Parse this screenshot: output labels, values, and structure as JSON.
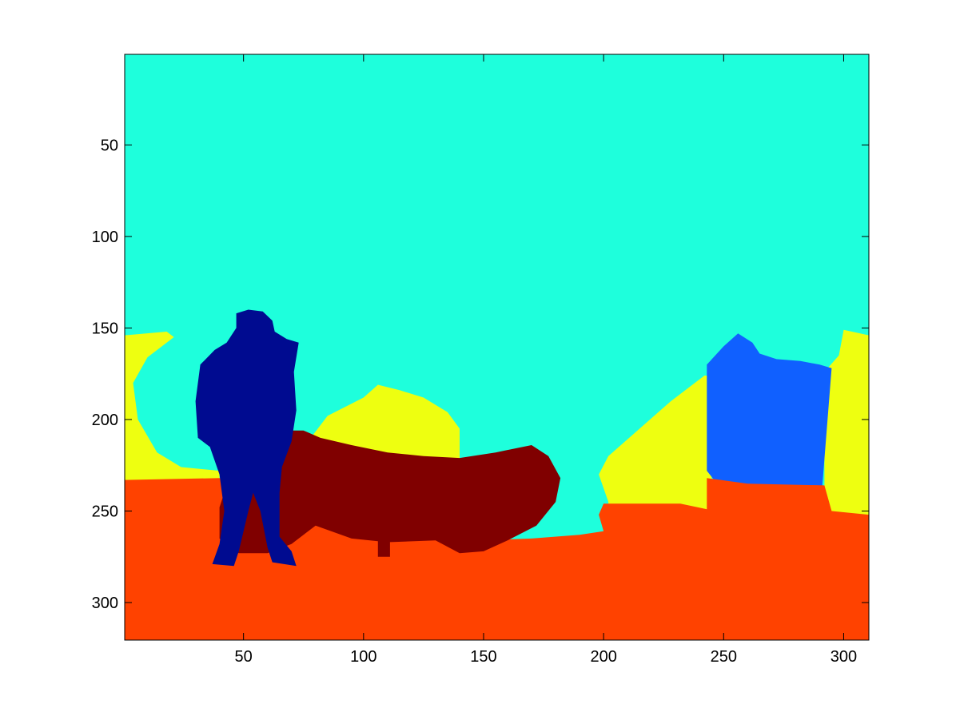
{
  "chart_data": {
    "type": "heatmap",
    "title": "",
    "xlabel": "",
    "ylabel": "",
    "xlim": [
      0.5,
      310.5
    ],
    "ylim": [
      320.5,
      0.5
    ],
    "y_axis_direction": "reversed",
    "grid": false,
    "colormap": "jet",
    "x_ticks": [
      50,
      100,
      150,
      200,
      250,
      300
    ],
    "y_ticks": [
      50,
      100,
      150,
      200,
      250,
      300
    ],
    "x_tick_labels": [
      "50",
      "100",
      "150",
      "200",
      "250",
      "300"
    ],
    "y_tick_labels": [
      "50",
      "100",
      "150",
      "200",
      "250",
      "300"
    ],
    "regions": [
      {
        "color": "#1effdc",
        "points": [
          [
            0.5,
            0.5
          ],
          [
            310.5,
            0.5
          ],
          [
            310.5,
            320.5
          ],
          [
            0.5,
            320.5
          ]
        ]
      },
      {
        "color": "#eeff10",
        "points": [
          [
            0.5,
            154
          ],
          [
            18,
            152
          ],
          [
            21,
            155
          ],
          [
            10,
            166
          ],
          [
            4,
            180
          ],
          [
            6,
            200
          ],
          [
            14,
            218
          ],
          [
            24,
            226
          ],
          [
            40,
            228
          ],
          [
            40,
            233
          ],
          [
            0.5,
            233
          ]
        ]
      },
      {
        "color": "#eeff10",
        "points": [
          [
            78,
            210
          ],
          [
            85,
            198
          ],
          [
            100,
            188
          ],
          [
            106,
            181
          ],
          [
            115,
            184
          ],
          [
            125,
            188
          ],
          [
            135,
            196
          ],
          [
            140,
            205
          ],
          [
            140,
            225
          ],
          [
            78,
            228
          ]
        ]
      },
      {
        "color": "#eeff10",
        "points": [
          [
            202,
            245
          ],
          [
            198,
            230
          ],
          [
            202,
            220
          ],
          [
            215,
            205
          ],
          [
            228,
            190
          ],
          [
            242,
            176
          ],
          [
            245,
            176
          ],
          [
            245,
            250
          ],
          [
            202,
            255
          ]
        ]
      },
      {
        "color": "#eeff10",
        "points": [
          [
            292,
            174
          ],
          [
            298,
            165
          ],
          [
            300,
            151
          ],
          [
            310.5,
            154
          ],
          [
            310.5,
            252
          ],
          [
            292,
            252
          ]
        ]
      },
      {
        "color": "#1060ff",
        "points": [
          [
            243,
            170
          ],
          [
            250,
            160
          ],
          [
            256,
            153
          ],
          [
            262,
            158
          ],
          [
            265,
            164
          ],
          [
            272,
            167
          ],
          [
            282,
            168
          ],
          [
            290,
            170
          ],
          [
            295,
            172
          ],
          [
            293,
            205
          ],
          [
            291,
            238
          ],
          [
            276,
            236
          ],
          [
            260,
            236
          ],
          [
            246,
            233
          ],
          [
            243,
            228
          ]
        ]
      },
      {
        "color": "#ff4200",
        "points": [
          [
            0.5,
            233
          ],
          [
            40,
            232
          ],
          [
            50,
            238
          ],
          [
            60,
            243
          ],
          [
            75,
            238
          ],
          [
            80,
            236
          ],
          [
            85,
            245
          ],
          [
            100,
            250
          ],
          [
            110,
            254
          ],
          [
            120,
            262
          ],
          [
            135,
            264
          ],
          [
            150,
            266
          ],
          [
            170,
            265
          ],
          [
            190,
            263
          ],
          [
            200,
            261
          ],
          [
            198,
            252
          ],
          [
            200,
            246
          ],
          [
            212,
            246
          ],
          [
            232,
            246
          ],
          [
            243,
            249
          ],
          [
            243,
            232
          ],
          [
            260,
            235
          ],
          [
            292,
            236
          ],
          [
            295,
            250
          ],
          [
            310.5,
            252
          ],
          [
            310.5,
            320.5
          ],
          [
            0.5,
            320.5
          ]
        ]
      },
      {
        "color": "#800000",
        "points": [
          [
            45,
            228
          ],
          [
            54,
            222
          ],
          [
            62,
            210
          ],
          [
            70,
            206
          ],
          [
            75,
            206
          ],
          [
            82,
            210
          ],
          [
            95,
            214
          ],
          [
            110,
            218
          ],
          [
            125,
            220
          ],
          [
            140,
            221
          ],
          [
            155,
            218
          ],
          [
            170,
            214
          ],
          [
            177,
            220
          ],
          [
            182,
            232
          ],
          [
            180,
            245
          ],
          [
            172,
            258
          ],
          [
            160,
            266
          ],
          [
            150,
            272
          ],
          [
            140,
            273
          ],
          [
            130,
            266
          ],
          [
            110,
            267
          ],
          [
            95,
            265
          ],
          [
            80,
            258
          ],
          [
            70,
            268
          ],
          [
            60,
            273
          ],
          [
            48,
            273
          ],
          [
            40,
            265
          ],
          [
            40,
            248
          ]
        ]
      },
      {
        "color": "#800000",
        "points": [
          [
            106,
            265
          ],
          [
            111,
            265
          ],
          [
            111,
            275
          ],
          [
            106,
            275
          ]
        ]
      },
      {
        "color": "#000b90",
        "points": [
          [
            47,
            150
          ],
          [
            47,
            142
          ],
          [
            52,
            140
          ],
          [
            58,
            141
          ],
          [
            62,
            146
          ],
          [
            63,
            152
          ],
          [
            68,
            156
          ],
          [
            73,
            158
          ],
          [
            71,
            174
          ],
          [
            72,
            195
          ],
          [
            70,
            212
          ],
          [
            66,
            226
          ],
          [
            65,
            240
          ],
          [
            65,
            264
          ],
          [
            70,
            272
          ],
          [
            72,
            280
          ],
          [
            62,
            278
          ],
          [
            60,
            270
          ],
          [
            57,
            250
          ],
          [
            54,
            240
          ],
          [
            52,
            250
          ],
          [
            48,
            272
          ],
          [
            46,
            280
          ],
          [
            37,
            279
          ],
          [
            40,
            268
          ],
          [
            42,
            250
          ],
          [
            40,
            230
          ],
          [
            36,
            215
          ],
          [
            31,
            210
          ],
          [
            30,
            190
          ],
          [
            32,
            170
          ],
          [
            38,
            162
          ],
          [
            43,
            158
          ]
        ]
      }
    ]
  }
}
